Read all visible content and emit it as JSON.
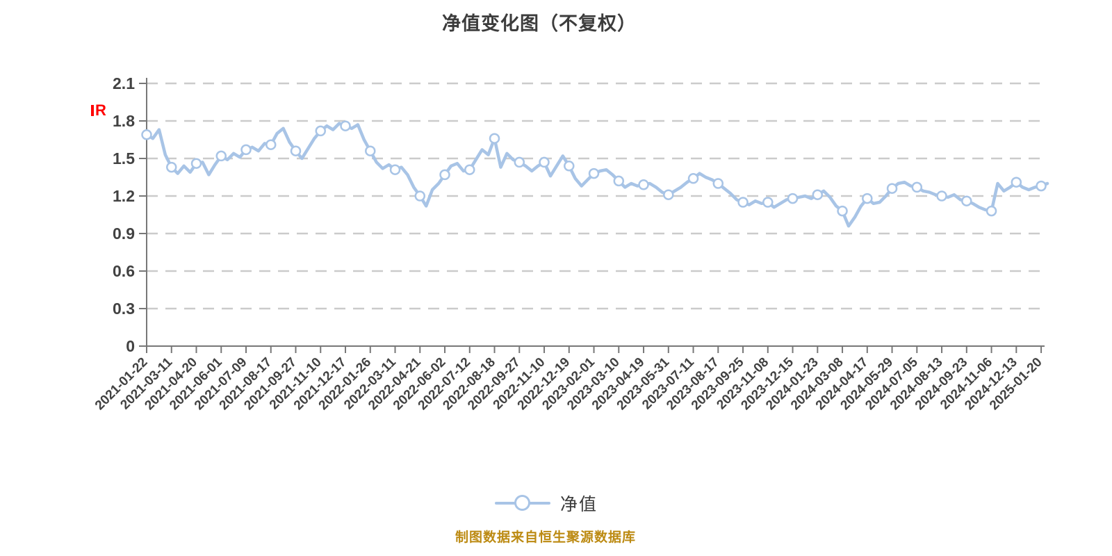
{
  "title": "净值变化图（不复权）",
  "y_axis": {
    "unit_mark": "R"
  },
  "legend": {
    "label": "净值"
  },
  "footer": {
    "source_note": "制图数据来自恒生聚源数据库"
  },
  "colors": {
    "line": "#a8c4e6",
    "marker_fill": "#ffffff",
    "grid": "#cbcbcb",
    "axis": "#777777",
    "tick_label": "#424242",
    "title": "#3c3c3c",
    "footer": "#bc8a12",
    "unit_mark": "#ff0000"
  },
  "chart_data": {
    "type": "line",
    "title": "净值变化图（不复权）",
    "series": [
      {
        "name": "净值",
        "values": [
          1.69,
          1.66,
          1.73,
          1.53,
          1.43,
          1.38,
          1.44,
          1.39,
          1.46,
          1.47,
          1.37,
          1.45,
          1.52,
          1.49,
          1.54,
          1.51,
          1.57,
          1.59,
          1.56,
          1.62,
          1.61,
          1.7,
          1.74,
          1.63,
          1.56,
          1.5,
          1.58,
          1.66,
          1.72,
          1.76,
          1.73,
          1.78,
          1.76,
          1.74,
          1.77,
          1.65,
          1.56,
          1.47,
          1.42,
          1.45,
          1.41,
          1.43,
          1.37,
          1.27,
          1.2,
          1.12,
          1.25,
          1.3,
          1.37,
          1.44,
          1.46,
          1.4,
          1.41,
          1.49,
          1.57,
          1.53,
          1.66,
          1.43,
          1.54,
          1.49,
          1.47,
          1.44,
          1.4,
          1.44,
          1.47,
          1.36,
          1.44,
          1.52,
          1.44,
          1.34,
          1.28,
          1.33,
          1.38,
          1.4,
          1.41,
          1.37,
          1.32,
          1.27,
          1.3,
          1.28,
          1.29,
          1.3,
          1.27,
          1.23,
          1.21,
          1.24,
          1.27,
          1.31,
          1.34,
          1.38,
          1.35,
          1.33,
          1.3,
          1.26,
          1.22,
          1.17,
          1.15,
          1.13,
          1.16,
          1.14,
          1.15,
          1.11,
          1.14,
          1.17,
          1.18,
          1.19,
          1.2,
          1.18,
          1.21,
          1.24,
          1.19,
          1.12,
          1.08,
          0.96,
          1.03,
          1.12,
          1.18,
          1.14,
          1.15,
          1.2,
          1.26,
          1.3,
          1.31,
          1.28,
          1.27,
          1.24,
          1.23,
          1.21,
          1.2,
          1.19,
          1.21,
          1.17,
          1.16,
          1.14,
          1.11,
          1.09,
          1.08,
          1.3,
          1.24,
          1.27,
          1.31,
          1.27,
          1.25,
          1.27,
          1.28,
          1.3
        ]
      }
    ],
    "marker_every": 4,
    "x_tick_labels": [
      "2021-01-22",
      "2021-03-11",
      "2021-04-20",
      "2021-06-01",
      "2021-07-09",
      "2021-08-17",
      "2021-09-27",
      "2021-11-10",
      "2021-12-17",
      "2022-01-26",
      "2022-03-11",
      "2022-04-21",
      "2022-06-02",
      "2022-07-12",
      "2022-08-18",
      "2022-09-27",
      "2022-11-10",
      "2022-12-19",
      "2023-02-01",
      "2023-03-10",
      "2023-04-19",
      "2023-05-31",
      "2023-07-11",
      "2023-08-17",
      "2023-09-25",
      "2023-11-08",
      "2023-12-15",
      "2024-01-23",
      "2024-03-08",
      "2024-04-17",
      "2024-05-29",
      "2024-07-05",
      "2024-08-13",
      "2024-09-23",
      "2024-11-06",
      "2024-12-13",
      "2025-01-20"
    ],
    "y_ticks": [
      0,
      0.3,
      0.6,
      0.9,
      1.2,
      1.5,
      1.8,
      2.1
    ],
    "y_tick_labels": [
      "0",
      "0.3",
      "0.6",
      "0.9",
      "1.2",
      "1.5",
      "1.8",
      "2.1"
    ],
    "ylim": [
      0,
      2.1
    ],
    "xlabel": "",
    "ylabel": "",
    "grid": "dashed-horizontal",
    "legend_position": "bottom"
  }
}
